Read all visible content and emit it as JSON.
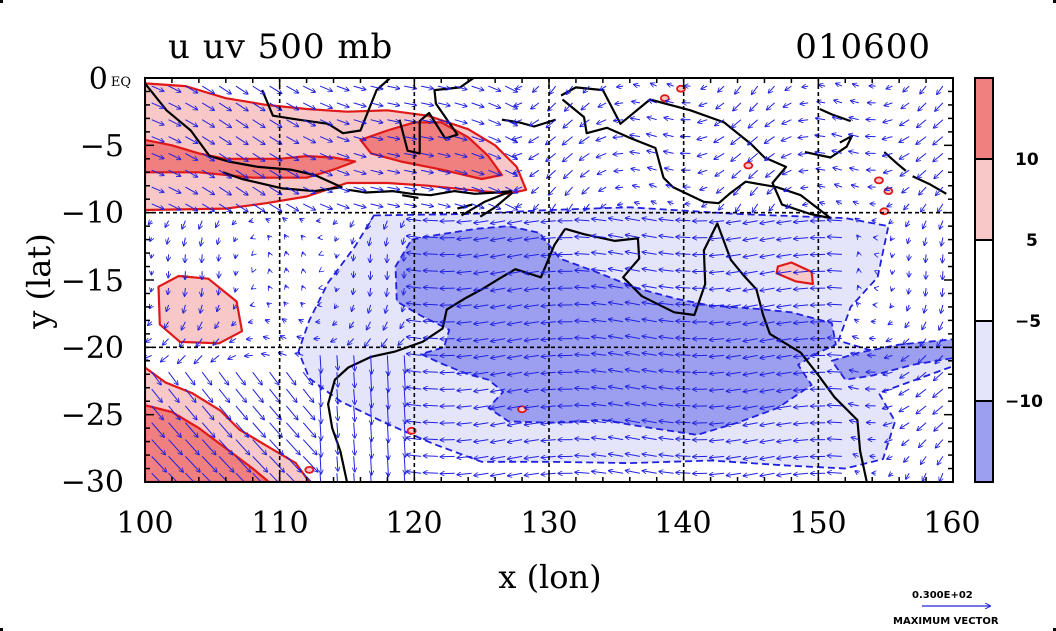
{
  "chart_data": {
    "type": "heatmap",
    "title": "u uv 500 mb",
    "date_label": "010600",
    "xlabel": "x (lon)",
    "ylabel": "y (lat)",
    "xlim": [
      100,
      160
    ],
    "ylim": [
      -30,
      0
    ],
    "x_ticks": [
      "100",
      "110",
      "120",
      "130",
      "140",
      "150",
      "160"
    ],
    "y_ticks": [
      "0 EQ",
      "−5",
      "−10",
      "−15",
      "−20",
      "−25",
      "−30"
    ],
    "grid": true,
    "gridlines_lon": [
      110,
      120,
      130,
      140,
      150
    ],
    "gridlines_lat": [
      -10,
      -20
    ],
    "colorbar": {
      "labels": [
        "10",
        "5",
        "−5",
        "−10"
      ],
      "levels": [
        10,
        5,
        -5,
        -10
      ],
      "colors": [
        "#f07f7f",
        "#f8c8c8",
        "#ffffff",
        "#e4e4fb",
        "#9c9ff0"
      ]
    },
    "vector_legend": {
      "value": "0.300E+02",
      "label": "MAXIMUM VECTOR"
    },
    "series": [
      {
        "region": "northwest positive u (Sumatra/Java belt)",
        "sign": "positive",
        "level": 5,
        "polygon_lonlat": [
          [
            100,
            -0.4
          ],
          [
            103,
            -0.6
          ],
          [
            106,
            -1.5
          ],
          [
            109,
            -2
          ],
          [
            112,
            -2.3
          ],
          [
            115,
            -2.5
          ],
          [
            118,
            -2.4
          ],
          [
            121,
            -2.8
          ],
          [
            124,
            -3.8
          ],
          [
            126,
            -5
          ],
          [
            127.6,
            -6.6
          ],
          [
            128.3,
            -8.3
          ],
          [
            127,
            -8.6
          ],
          [
            124,
            -8.3
          ],
          [
            121,
            -8
          ],
          [
            118,
            -7.8
          ],
          [
            115,
            -7.8
          ],
          [
            112,
            -8.8
          ],
          [
            109,
            -9.3
          ],
          [
            106,
            -9.7
          ],
          [
            100,
            -9.8
          ]
        ]
      },
      {
        "region": "northwest strong positive core",
        "sign": "positive",
        "level": 10,
        "polygon_lonlat": [
          [
            100,
            -4.6
          ],
          [
            102,
            -5
          ],
          [
            104,
            -5.6
          ],
          [
            106,
            -6
          ],
          [
            108,
            -6
          ],
          [
            110,
            -6
          ],
          [
            112,
            -5.8
          ],
          [
            114,
            -5.9
          ],
          [
            115.6,
            -6.2
          ],
          [
            114,
            -6.8
          ],
          [
            112,
            -7.4
          ],
          [
            108,
            -7.4
          ],
          [
            104,
            -7
          ],
          [
            100,
            -7
          ]
        ]
      },
      {
        "region": "Banda Sea positive core",
        "sign": "positive",
        "level": 10,
        "polygon_lonlat": [
          [
            116,
            -4.6
          ],
          [
            118,
            -3.9
          ],
          [
            120,
            -3.3
          ],
          [
            122,
            -3.3
          ],
          [
            124,
            -4.4
          ],
          [
            125.5,
            -5.8
          ],
          [
            126.5,
            -7.2
          ],
          [
            125,
            -7.5
          ],
          [
            122,
            -6.8
          ],
          [
            119,
            -6.2
          ],
          [
            116.8,
            -5.6
          ]
        ]
      },
      {
        "region": "Indian Ocean positive cell",
        "sign": "positive",
        "level": 5,
        "polygon_lonlat": [
          [
            101,
            -15.5
          ],
          [
            102.5,
            -14.7
          ],
          [
            104.7,
            -14.9
          ],
          [
            106.8,
            -16.6
          ],
          [
            107.2,
            -18.8
          ],
          [
            105.5,
            -19.7
          ],
          [
            102.6,
            -19.6
          ],
          [
            101.1,
            -18.3
          ]
        ]
      },
      {
        "region": "southwest positive region",
        "sign": "positive",
        "level": 5,
        "polygon_lonlat": [
          [
            100,
            -21.5
          ],
          [
            101.5,
            -22.6
          ],
          [
            103.5,
            -23.4
          ],
          [
            105.6,
            -24.7
          ],
          [
            107,
            -26.1
          ],
          [
            109,
            -27.3
          ],
          [
            111.2,
            -28.6
          ],
          [
            112.2,
            -30
          ],
          [
            100,
            -30
          ]
        ]
      },
      {
        "region": "southwest strong positive core",
        "sign": "positive",
        "level": 10,
        "polygon_lonlat": [
          [
            100,
            -24.3
          ],
          [
            102,
            -24.8
          ],
          [
            104,
            -26
          ],
          [
            106,
            -27.5
          ],
          [
            108,
            -29
          ],
          [
            109.2,
            -30
          ],
          [
            100,
            -30
          ]
        ]
      },
      {
        "region": "Australian negative band",
        "sign": "negative",
        "level": -5,
        "polygon_lonlat": [
          [
            117,
            -10.2
          ],
          [
            124,
            -10.1
          ],
          [
            130,
            -9.8
          ],
          [
            136,
            -9.6
          ],
          [
            144,
            -10.1
          ],
          [
            152,
            -10.4
          ],
          [
            155.2,
            -11
          ],
          [
            154.4,
            -14.8
          ],
          [
            152.4,
            -17
          ],
          [
            151.5,
            -19.5
          ],
          [
            153.8,
            -20.2
          ],
          [
            160,
            -20
          ],
          [
            160,
            -21.4
          ],
          [
            154.5,
            -23.4
          ],
          [
            155.7,
            -25.5
          ],
          [
            154.8,
            -28.3
          ],
          [
            152,
            -29
          ],
          [
            148,
            -28.8
          ],
          [
            142,
            -28.4
          ],
          [
            136,
            -28.6
          ],
          [
            130,
            -28.5
          ],
          [
            125,
            -28.5
          ],
          [
            121.5,
            -27.2
          ],
          [
            117.8,
            -25.6
          ],
          [
            114.5,
            -24
          ],
          [
            112.2,
            -22.3
          ],
          [
            111.4,
            -20.3
          ],
          [
            112.2,
            -18
          ],
          [
            113.6,
            -15.2
          ],
          [
            115.6,
            -12.5
          ]
        ]
      },
      {
        "region": "Australian strong negative core",
        "sign": "negative",
        "level": -10,
        "polygon_lonlat": [
          [
            119.8,
            -12
          ],
          [
            122,
            -11.6
          ],
          [
            124.6,
            -11.2
          ],
          [
            127,
            -11
          ],
          [
            129.3,
            -11.5
          ],
          [
            130.8,
            -13.4
          ],
          [
            133.5,
            -14.4
          ],
          [
            136.5,
            -15.6
          ],
          [
            139.5,
            -16.4
          ],
          [
            142,
            -16.9
          ],
          [
            145,
            -17.1
          ],
          [
            148,
            -17.4
          ],
          [
            151,
            -18.2
          ],
          [
            151.3,
            -19.8
          ],
          [
            150,
            -20.4
          ],
          [
            148.5,
            -21.3
          ],
          [
            149.5,
            -22.8
          ],
          [
            147,
            -24.5
          ],
          [
            144,
            -25.6
          ],
          [
            141,
            -26.5
          ],
          [
            137,
            -25.9
          ],
          [
            134,
            -25.4
          ],
          [
            130,
            -25.6
          ],
          [
            127,
            -25.5
          ],
          [
            125.5,
            -24.5
          ],
          [
            126.6,
            -23.3
          ],
          [
            125.5,
            -22.4
          ],
          [
            124,
            -22
          ],
          [
            122,
            -21.2
          ],
          [
            120.5,
            -20.5
          ],
          [
            122.2,
            -20
          ],
          [
            122.6,
            -18.7
          ],
          [
            120.4,
            -17.6
          ],
          [
            118.7,
            -16.6
          ],
          [
            118.6,
            -14
          ]
        ]
      },
      {
        "region": "Coral Sea negative arm",
        "sign": "negative",
        "level": -10,
        "polygon_lonlat": [
          [
            151,
            -21
          ],
          [
            153,
            -20.4
          ],
          [
            156,
            -19.8
          ],
          [
            160,
            -19.4
          ],
          [
            160,
            -20.8
          ],
          [
            157,
            -21.3
          ],
          [
            154,
            -22.1
          ],
          [
            152,
            -22.4
          ]
        ]
      },
      {
        "region": "Coral Sea positive patch",
        "sign": "positive",
        "level": 5,
        "polygon_lonlat": [
          [
            147,
            -14
          ],
          [
            148,
            -13.7
          ],
          [
            149.5,
            -14.4
          ],
          [
            149.6,
            -15.3
          ],
          [
            148.3,
            -15.1
          ],
          [
            146.9,
            -14.5
          ]
        ]
      }
    ]
  }
}
